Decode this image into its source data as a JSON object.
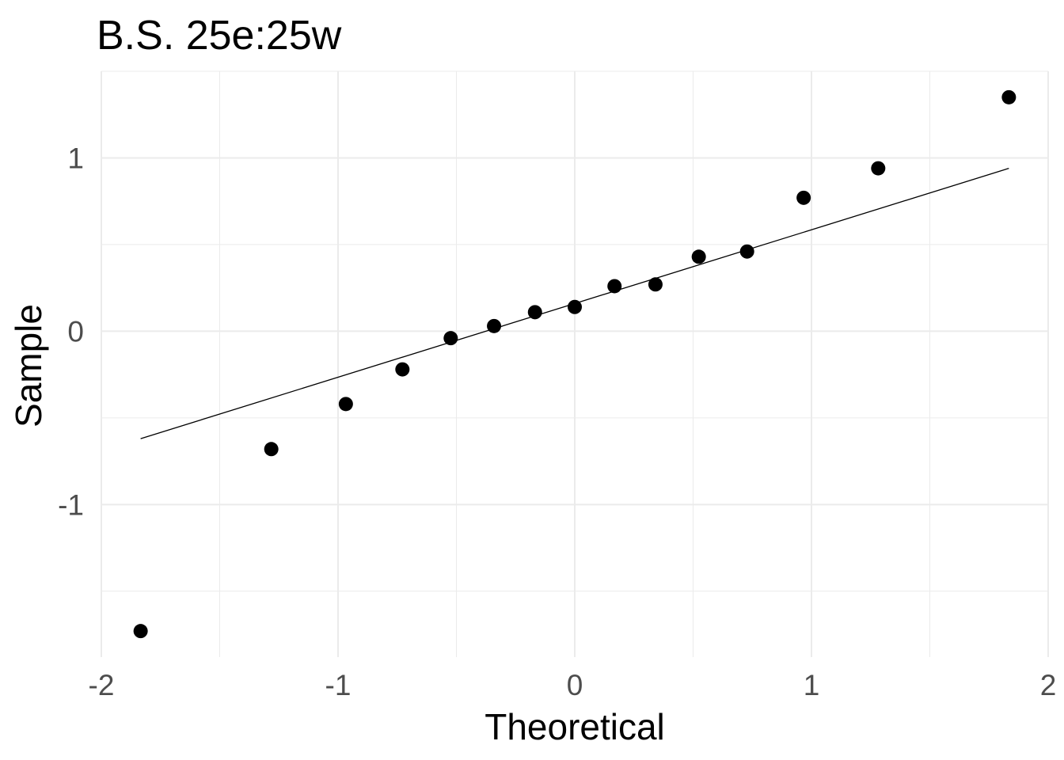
{
  "chart_data": {
    "type": "scatter",
    "title": "B.S. 25e:25w",
    "xlabel": "Theoretical",
    "ylabel": "Sample",
    "xlim": [
      -2,
      2
    ],
    "ylim": [
      -1.88,
      1.5
    ],
    "x_ticks": [
      -2,
      -1,
      0,
      1,
      2
    ],
    "x_tick_labels": [
      "-2",
      "-1",
      "0",
      "1",
      "2"
    ],
    "y_ticks": [
      -1,
      0,
      1
    ],
    "y_tick_labels": [
      "-1",
      "0",
      "1"
    ],
    "grid": true,
    "legend": "none",
    "series": [
      {
        "x": [
          -1.834,
          -1.282,
          -0.967,
          -0.728,
          -0.524,
          -0.341,
          -0.168,
          0.0,
          0.168,
          0.341,
          0.524,
          0.728,
          0.967,
          1.282,
          1.834
        ],
        "y": [
          -1.73,
          -0.68,
          -0.42,
          -0.22,
          -0.04,
          0.03,
          0.11,
          0.14,
          0.26,
          0.27,
          0.43,
          0.46,
          0.77,
          0.94,
          1.35
        ]
      }
    ],
    "reference_line": {
      "x": [
        -1.834,
        1.834
      ],
      "y": [
        -0.62,
        0.94
      ]
    },
    "colors": {
      "points": "#000000",
      "line": "#000000",
      "grid": "#ebebeb",
      "tick_text": "#4d4d4d"
    }
  }
}
